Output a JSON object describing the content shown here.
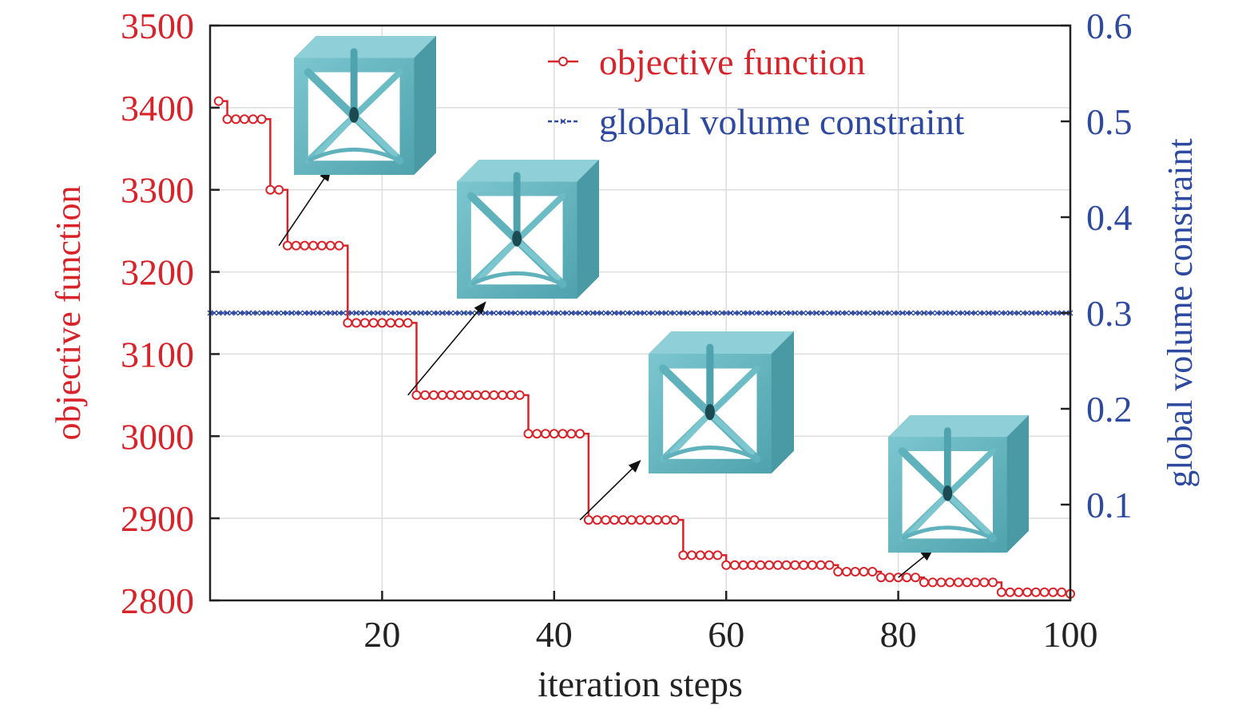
{
  "chart_data": {
    "type": "line",
    "title": "",
    "xlabel": "iteration steps",
    "ylabel_left": "objective function",
    "ylabel_right": "global volume constraint",
    "xlim": [
      0,
      100
    ],
    "ylim_left": [
      2800,
      3500
    ],
    "ylim_right": [
      0,
      0.6
    ],
    "x_ticks": [
      20,
      40,
      60,
      80,
      100
    ],
    "y_ticks_left": [
      2800,
      2900,
      3000,
      3100,
      3200,
      3300,
      3400,
      3500
    ],
    "y_ticks_right": [
      0.1,
      0.2,
      0.3,
      0.4,
      0.5,
      0.6
    ],
    "grid": true,
    "legend_position": "top-right",
    "series": [
      {
        "name": "objective function",
        "axis": "left",
        "color": "#d8232a",
        "marker": "circle",
        "x": [
          1,
          2,
          3,
          4,
          5,
          6,
          7,
          8,
          9,
          10,
          11,
          12,
          13,
          14,
          15,
          16,
          17,
          18,
          19,
          20,
          21,
          22,
          23,
          24,
          25,
          26,
          27,
          28,
          29,
          30,
          31,
          32,
          33,
          34,
          35,
          36,
          37,
          38,
          39,
          40,
          41,
          42,
          43,
          44,
          45,
          46,
          47,
          48,
          49,
          50,
          51,
          52,
          53,
          54,
          55,
          56,
          57,
          58,
          59,
          60,
          61,
          62,
          63,
          64,
          65,
          66,
          67,
          68,
          69,
          70,
          71,
          72,
          73,
          74,
          75,
          76,
          77,
          78,
          79,
          80,
          81,
          82,
          83,
          84,
          85,
          86,
          87,
          88,
          89,
          90,
          91,
          92,
          93,
          94,
          95,
          96,
          97,
          98,
          99,
          100
        ],
        "y": [
          3408,
          3386,
          3386,
          3386,
          3386,
          3386,
          3300,
          3300,
          3232,
          3232,
          3232,
          3232,
          3232,
          3232,
          3232,
          3138,
          3138,
          3138,
          3138,
          3138,
          3138,
          3138,
          3138,
          3050,
          3050,
          3050,
          3050,
          3050,
          3050,
          3050,
          3050,
          3050,
          3050,
          3050,
          3050,
          3050,
          3003,
          3003,
          3003,
          3003,
          3003,
          3003,
          3003,
          2898,
          2898,
          2898,
          2898,
          2898,
          2898,
          2898,
          2898,
          2898,
          2898,
          2898,
          2855,
          2855,
          2855,
          2855,
          2855,
          2843,
          2843,
          2843,
          2843,
          2843,
          2843,
          2843,
          2843,
          2843,
          2843,
          2843,
          2843,
          2843,
          2835,
          2835,
          2835,
          2835,
          2835,
          2828,
          2828,
          2828,
          2828,
          2828,
          2822,
          2822,
          2822,
          2822,
          2822,
          2822,
          2822,
          2822,
          2822,
          2810,
          2810,
          2810,
          2810,
          2810,
          2810,
          2810,
          2810,
          2808
        ]
      },
      {
        "name": "global volume constraint",
        "axis": "right",
        "color": "#2e4aa0",
        "marker": "star",
        "x_range": [
          0,
          100
        ],
        "value": 0.3
      }
    ],
    "annotations": [
      {
        "type": "arrow",
        "from_x": 8,
        "from_y": 3232,
        "to_x": 14,
        "to_y": 3325
      },
      {
        "type": "arrow",
        "from_x": 23,
        "from_y": 3050,
        "to_x": 32,
        "to_y": 3163
      },
      {
        "type": "arrow",
        "from_x": 43,
        "from_y": 2898,
        "to_x": 50,
        "to_y": 2970
      },
      {
        "type": "arrow",
        "from_x": 80,
        "from_y": 2828,
        "to_x": 84,
        "to_y": 2862
      }
    ],
    "insets": [
      {
        "icon": "lattice-cube-icon",
        "step": 14
      },
      {
        "icon": "lattice-cube-icon",
        "step": 32
      },
      {
        "icon": "lattice-cube-icon",
        "step": 50
      },
      {
        "icon": "lattice-cube-icon",
        "step": 84
      }
    ]
  }
}
